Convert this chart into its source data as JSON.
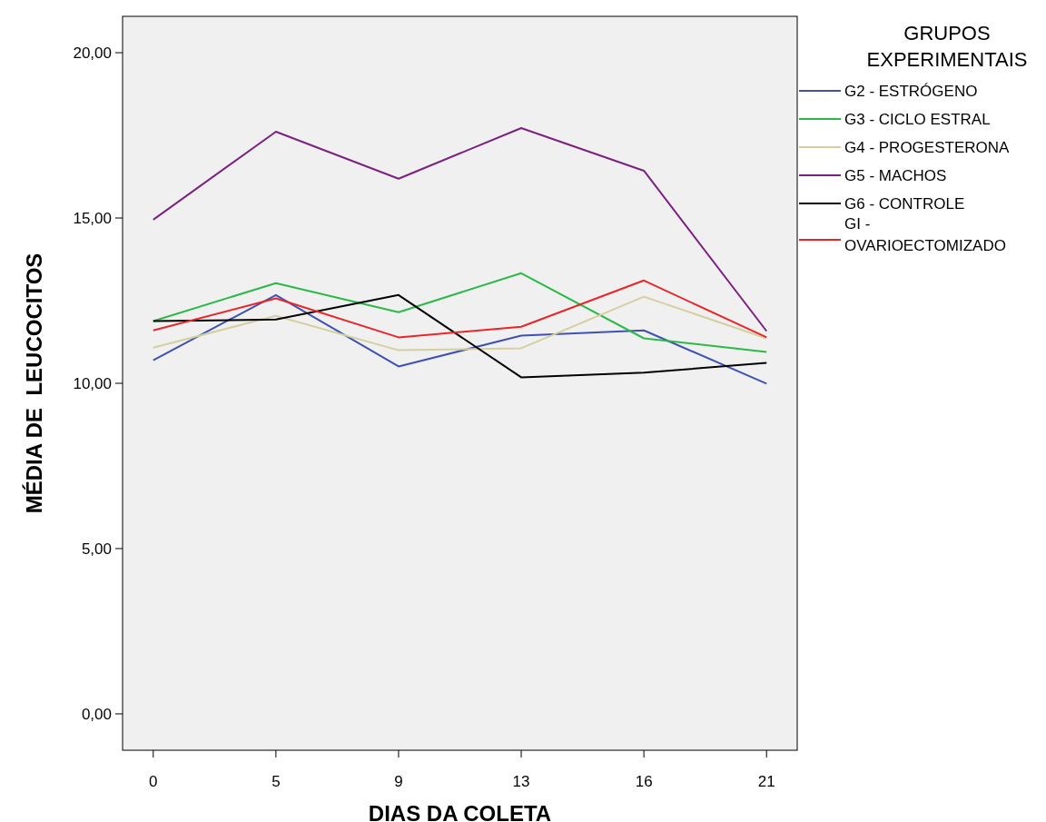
{
  "chart_data": {
    "type": "line",
    "xlabel": "DIAS DA COLETA",
    "ylabel": "MÉDIA DE  LEUCOCITOS",
    "legend_title": "GRUPOS EXPERIMENTAIS",
    "categories": [
      "0",
      "5",
      "9",
      "13",
      "16",
      "21"
    ],
    "ylim": [
      -1.1,
      21.1
    ],
    "yticks": [
      {
        "value": 0,
        "label": "0,00"
      },
      {
        "value": 5,
        "label": "5,00"
      },
      {
        "value": 10,
        "label": "10,00"
      },
      {
        "value": 15,
        "label": "15,00"
      },
      {
        "value": 20,
        "label": "20,00"
      }
    ],
    "grid": false,
    "legend": "top right",
    "marker": "none",
    "line_style": "solid",
    "series": [
      {
        "name": "G2 - ESTRÓGENO",
        "color": "#3f51b1",
        "values": [
          10.7,
          12.67,
          10.51,
          11.44,
          11.6,
          9.99
        ]
      },
      {
        "name": "G3 - CICLO ESTRAL",
        "color": "#2db84a",
        "values": [
          11.88,
          13.03,
          12.15,
          13.33,
          11.36,
          10.95
        ]
      },
      {
        "name": "G4 - PROGESTERONA",
        "color": "#d4cf9e",
        "values": [
          11.08,
          12.04,
          11.0,
          11.06,
          12.62,
          11.36
        ]
      },
      {
        "name": "G5 - MACHOS",
        "color": "#7b2180",
        "values": [
          14.95,
          17.61,
          16.19,
          17.72,
          16.43,
          11.58
        ]
      },
      {
        "name": "G6 - CONTROLE",
        "color": "#000000",
        "values": [
          11.88,
          11.93,
          12.67,
          10.18,
          10.32,
          10.62
        ]
      },
      {
        "name": "GI - OVARIOECTOMIZADO",
        "color": "#e8262a",
        "values": [
          11.6,
          12.57,
          11.39,
          11.71,
          13.11,
          11.39
        ]
      }
    ]
  }
}
